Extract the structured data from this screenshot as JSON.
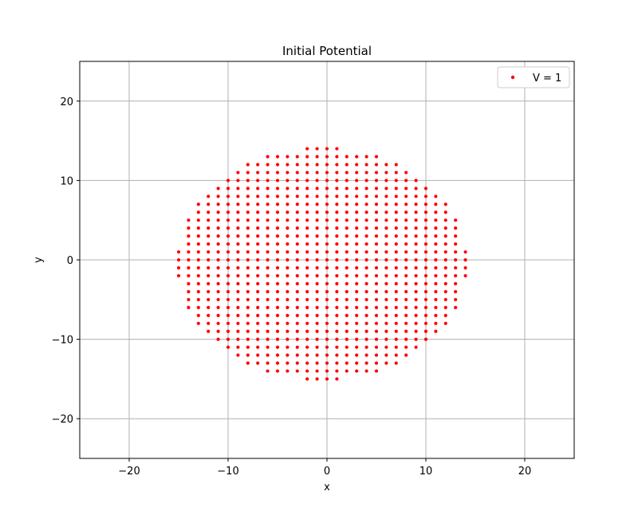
{
  "chart_data": {
    "type": "scatter",
    "title": "Initial Potential",
    "xlabel": "x",
    "ylabel": "y",
    "xlim": [
      -25,
      25
    ],
    "ylim": [
      -25,
      25
    ],
    "xticks": [
      -20,
      -10,
      0,
      10,
      20
    ],
    "yticks": [
      -20,
      -10,
      0,
      10,
      20
    ],
    "xtick_labels": [
      "−20",
      "−10",
      "0",
      "10",
      "20"
    ],
    "ytick_labels": [
      "−20",
      "−10",
      "0",
      "10",
      "20"
    ],
    "grid": true,
    "legend_position": "top-right",
    "series": [
      {
        "name": "V = 1",
        "color": "#ff0000",
        "x_range": [
          -15,
          14
        ],
        "y_range": [
          -15,
          14
        ],
        "region": "disk",
        "center": [
          -0.5,
          -0.5
        ],
        "radius": 14.6
      }
    ]
  }
}
